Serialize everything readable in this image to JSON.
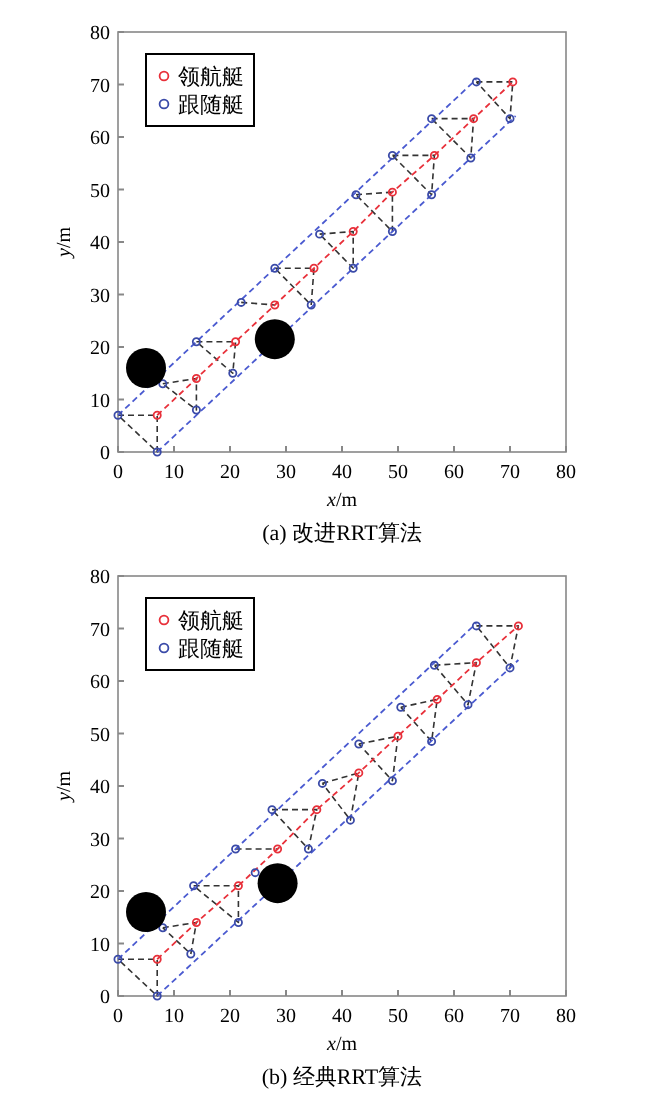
{
  "chart_data": [
    {
      "type": "line",
      "title": "(a) 改进RRT算法",
      "xlabel": "x/m",
      "ylabel": "y/m",
      "xlim": [
        0,
        80
      ],
      "ylim": [
        0,
        80
      ],
      "xticks": [
        0,
        10,
        20,
        30,
        40,
        50,
        60,
        70,
        80
      ],
      "yticks": [
        0,
        10,
        20,
        30,
        40,
        50,
        60,
        70,
        80
      ],
      "legend": "top left",
      "series": [
        {
          "type": "line",
          "color": "#4a5ad0",
          "line_style": "dashed",
          "marker": "none",
          "x": [
            0,
            64
          ],
          "values": [
            7,
            71
          ]
        },
        {
          "type": "line",
          "color": "#4a5ad0",
          "line_style": "dashed",
          "marker": "none",
          "x": [
            7,
            71
          ],
          "values": [
            0,
            64
          ]
        },
        {
          "name": "领航艇",
          "type": "line",
          "color": "#e8303a",
          "line_style": "dashed",
          "marker": "circle",
          "x": [
            7,
            14,
            21,
            28,
            35,
            42,
            49,
            56.5,
            63.5,
            70.5
          ],
          "values": [
            7,
            14,
            21,
            28,
            35,
            42,
            49.5,
            56.5,
            63.5,
            70.5
          ]
        },
        {
          "name": "跟随艇",
          "type": "scatter",
          "color": "#3a4aa8",
          "marker": "circle",
          "x": [
            0,
            7,
            8,
            14,
            14,
            20.5,
            22,
            28,
            34.5,
            36,
            42,
            42.5,
            49,
            49,
            56,
            56,
            63,
            64,
            70
          ],
          "values": [
            7,
            0,
            13,
            8,
            21,
            15,
            28.5,
            35,
            28,
            41.5,
            35,
            49,
            42,
            56.5,
            49,
            63.5,
            56,
            70.5,
            63.5
          ]
        },
        {
          "type": "bubble",
          "color": "#000000",
          "x": [
            5,
            28
          ],
          "values": [
            16,
            21.5
          ],
          "sizes": [
            1,
            1
          ]
        }
      ]
    },
    {
      "type": "line",
      "title": "(b) 经典RRT算法",
      "xlabel": "x/m",
      "ylabel": "y/m",
      "xlim": [
        0,
        80
      ],
      "ylim": [
        0,
        80
      ],
      "xticks": [
        0,
        10,
        20,
        30,
        40,
        50,
        60,
        70,
        80
      ],
      "yticks": [
        0,
        10,
        20,
        30,
        40,
        50,
        60,
        70,
        80
      ],
      "legend": "top left",
      "series": [
        {
          "type": "line",
          "color": "#4a5ad0",
          "line_style": "dashed",
          "marker": "none",
          "x": [
            0,
            64
          ],
          "values": [
            7,
            71
          ]
        },
        {
          "type": "line",
          "color": "#4a5ad0",
          "line_style": "dashed",
          "marker": "none",
          "x": [
            7,
            71.5
          ],
          "values": [
            0,
            64
          ]
        },
        {
          "name": "领航艇",
          "type": "line",
          "color": "#e8303a",
          "line_style": "dashed",
          "marker": "circle",
          "x": [
            7,
            14,
            21.5,
            28.5,
            35.5,
            43,
            50,
            57,
            64,
            71.5
          ],
          "values": [
            7,
            14,
            21,
            28,
            35.5,
            42.5,
            49.5,
            56.5,
            63.5,
            70.5
          ]
        },
        {
          "name": "跟随艇",
          "type": "scatter",
          "color": "#3a4aa8",
          "marker": "circle",
          "x": [
            0,
            7,
            8,
            13,
            13.5,
            21.5,
            21,
            24.5,
            27.5,
            34,
            36.5,
            41.5,
            43,
            49,
            50.5,
            56,
            56.5,
            62.5,
            64,
            70
          ],
          "values": [
            7,
            0,
            13,
            8,
            21,
            14,
            28,
            23.5,
            35.5,
            28,
            40.5,
            33.5,
            48,
            41,
            55,
            48.5,
            63,
            55.5,
            70.5,
            62.5
          ]
        },
        {
          "type": "bubble",
          "color": "#000000",
          "x": [
            5,
            28.5
          ],
          "values": [
            16,
            21.5
          ],
          "sizes": [
            1,
            1
          ]
        }
      ]
    }
  ]
}
